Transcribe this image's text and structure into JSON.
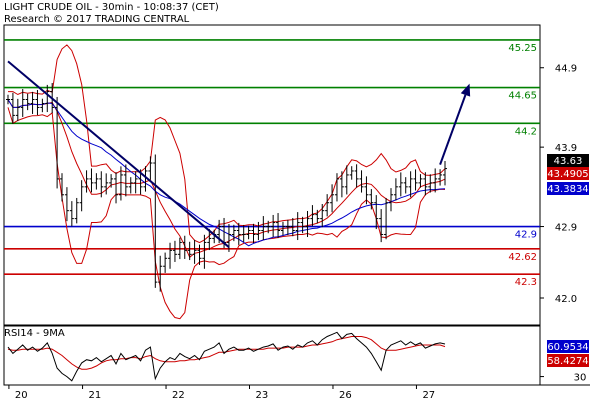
{
  "header": {
    "title": "LIGHT CRUDE OIL - 30min - 10:08:37 (CET)",
    "copyright": "Research © 2017 TRADING CENTRAL"
  },
  "colors": {
    "background": "#ffffff",
    "border": "#000000",
    "candle": "#000000",
    "resistance": "#008000",
    "pivot": "#0000cc",
    "support": "#cc0000",
    "trendline": "#000066",
    "bollinger": "#cc0000",
    "ma_blue": "#0000cc",
    "rsi": "#000000",
    "rsi_ma": "#cc0000",
    "price_box": "#000000",
    "ma_box_red": "#cc0000",
    "ma_box_blue": "#0000cc"
  },
  "chart_data": [
    {
      "type": "candlestick",
      "title": "LIGHT CRUDE OIL - 30min",
      "y_range": [
        41.6,
        45.35
      ],
      "y_ticks": [
        "44.9",
        "43.9",
        "42.9",
        "42.0"
      ],
      "y_tick_values": [
        44.9,
        43.9,
        42.9,
        42.0
      ],
      "x_labels": [
        "20",
        "21",
        "22",
        "23",
        "26",
        "27"
      ],
      "x_label_bar_index": [
        1,
        16,
        33,
        50,
        67,
        84
      ],
      "levels": [
        {
          "label": "45.25",
          "value": 45.25,
          "kind": "resistance"
        },
        {
          "label": "44.65",
          "value": 44.65,
          "kind": "resistance"
        },
        {
          "label": "44.2",
          "value": 44.2,
          "kind": "resistance"
        },
        {
          "label": "42.9",
          "value": 42.9,
          "kind": "pivot"
        },
        {
          "label": "42.62",
          "value": 42.62,
          "kind": "support"
        },
        {
          "label": "42.3",
          "value": 42.3,
          "kind": "support"
        }
      ],
      "price_labels": [
        {
          "label": "43.63",
          "value": 43.63,
          "kind": "price"
        },
        {
          "label": "43.4905",
          "value": 43.4905,
          "kind": "ma_red"
        },
        {
          "label": "43.3834",
          "value": 43.3834,
          "kind": "ma_blue"
        }
      ],
      "close": [
        44.5,
        44.3,
        44.4,
        44.5,
        44.45,
        44.5,
        44.4,
        44.45,
        44.6,
        44.4,
        43.5,
        43.3,
        43.1,
        43.0,
        43.2,
        43.4,
        43.5,
        43.45,
        43.5,
        43.4,
        43.45,
        43.5,
        43.3,
        43.55,
        43.4,
        43.45,
        43.5,
        43.4,
        43.6,
        43.7,
        42.2,
        42.4,
        42.5,
        42.6,
        42.55,
        42.7,
        42.6,
        42.55,
        42.6,
        42.5,
        42.7,
        42.75,
        42.8,
        42.9,
        42.7,
        42.8,
        42.85,
        42.8,
        42.8,
        42.85,
        42.8,
        42.85,
        42.9,
        42.9,
        42.95,
        42.85,
        42.9,
        42.9,
        42.85,
        42.95,
        42.9,
        43.0,
        43.05,
        43.0,
        43.1,
        43.2,
        43.3,
        43.5,
        43.4,
        43.55,
        43.6,
        43.5,
        43.4,
        43.3,
        43.2,
        43.0,
        42.8,
        43.2,
        43.3,
        43.4,
        43.45,
        43.4,
        43.5,
        43.45,
        43.5,
        43.4,
        43.45,
        43.5,
        43.55,
        43.63
      ],
      "trendline": {
        "from": {
          "bar": 0,
          "value": 44.98
        },
        "to": {
          "bar": 45,
          "value": 42.64
        }
      },
      "projection_arrow": {
        "from": {
          "bar": 88,
          "value": 43.68
        },
        "to": {
          "bar": 94,
          "value": 44.7
        }
      }
    },
    {
      "type": "line",
      "title": "RSI14 - 9MA",
      "y_ticks": [
        "30"
      ],
      "y_tick_values": [
        30
      ],
      "y_range": [
        22,
        78
      ],
      "value_labels": [
        {
          "label": "60.9534",
          "value": 60.9534,
          "kind": "rsi"
        },
        {
          "label": "58.4274",
          "value": 58.4274,
          "kind": "rsi_ma"
        }
      ],
      "series": [
        {
          "key": "rsi",
          "values": [
            58,
            52,
            56,
            60,
            55,
            58,
            54,
            57,
            62,
            52,
            38,
            33,
            30,
            26,
            35,
            43,
            46,
            45,
            48,
            44,
            47,
            50,
            42,
            52,
            46,
            48,
            50,
            45,
            55,
            58,
            28,
            38,
            44,
            48,
            46,
            52,
            49,
            47,
            50,
            46,
            54,
            56,
            58,
            62,
            52,
            56,
            58,
            55,
            55,
            57,
            54,
            56,
            58,
            59,
            61,
            55,
            58,
            59,
            56,
            60,
            58,
            62,
            64,
            60,
            65,
            68,
            70,
            72,
            66,
            70,
            71,
            66,
            62,
            58,
            52,
            44,
            36,
            55,
            60,
            62,
            64,
            60,
            63,
            60,
            62,
            57,
            59,
            61,
            62,
            60.95
          ]
        },
        {
          "key": "rsi_ma",
          "values": [
            56,
            55,
            55,
            56,
            56,
            56,
            56,
            56,
            57,
            56,
            53,
            50,
            46,
            42,
            39,
            37,
            37,
            38,
            40,
            43,
            45,
            46,
            46,
            47,
            47,
            48,
            48,
            47,
            49,
            50,
            47,
            45,
            44,
            44,
            44,
            45,
            45,
            46,
            46,
            47,
            48,
            49,
            51,
            53,
            53,
            54,
            55,
            56,
            56,
            56,
            56,
            56,
            56,
            57,
            57,
            57,
            57,
            58,
            58,
            58,
            58,
            59,
            60,
            60,
            61,
            62,
            63,
            65,
            66,
            67,
            68,
            68,
            68,
            67,
            65,
            61,
            57,
            55,
            55,
            55,
            56,
            57,
            58,
            59,
            60,
            60,
            60,
            60,
            60,
            58.43
          ]
        }
      ]
    }
  ]
}
